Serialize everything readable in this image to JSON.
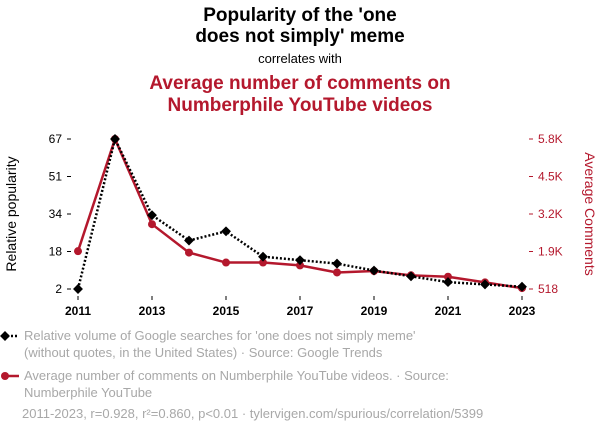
{
  "header": {
    "title_line1": "Popularity of the 'one",
    "title_line2": "does not simply' meme",
    "correlates": "correlates with",
    "subtitle_line1": "Average number of comments on",
    "subtitle_line2": "Numberphile YouTube videos"
  },
  "colors": {
    "series1": "#000000",
    "series2": "#b4182d",
    "muted": "#a8a8a8"
  },
  "chart_data": {
    "type": "line",
    "x": [
      2011,
      2012,
      2013,
      2014,
      2015,
      2016,
      2017,
      2018,
      2019,
      2020,
      2021,
      2022,
      2023
    ],
    "x_ticks": [
      "2011",
      "2013",
      "2015",
      "2017",
      "2019",
      "2021",
      "2023"
    ],
    "ylabel_left": "Relative popularity",
    "ylabel_right": "Average Comments",
    "yticks_left": [
      "2",
      "18",
      "34",
      "51",
      "67"
    ],
    "yticks_right": [
      "518",
      "1.9K",
      "3.2K",
      "4.5K",
      "5.8K"
    ],
    "ylim_left": [
      2,
      67
    ],
    "ylim_right": [
      518,
      5800
    ],
    "grid": false,
    "series": [
      {
        "axis": "left",
        "style": "dotted-with-diamond-markers",
        "values": [
          2,
          67,
          34,
          23,
          27,
          16,
          14.5,
          13,
          10,
          7.5,
          5,
          4,
          3
        ]
      },
      {
        "axis": "right",
        "style": "solid-with-circle-markers",
        "values": [
          1850,
          5800,
          2800,
          1800,
          1450,
          1450,
          1350,
          1100,
          1150,
          1000,
          950,
          750,
          550
        ]
      }
    ]
  },
  "legend": {
    "item1_line1": "Relative volume of Google searches for 'one does not simply meme'",
    "item1_line2": "(without quotes, in the United States) · Source: Google Trends",
    "item2_line1": "Average number of comments on Numberphile YouTube videos. · Source:",
    "item2_line2": "Numberphile YouTube"
  },
  "footer": {
    "stats": "2011-2023, r=0.928, r²=0.860, p<0.01 · tylervigen.com/spurious/correlation/5399"
  }
}
